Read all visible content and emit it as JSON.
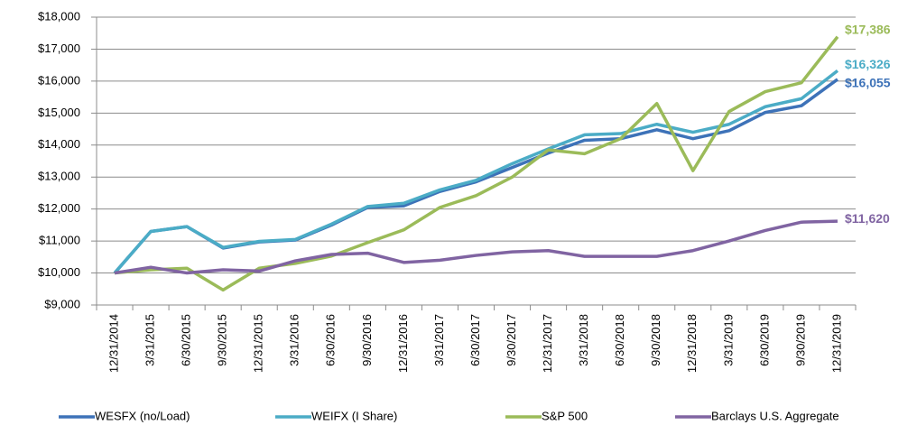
{
  "chart_data": {
    "type": "line",
    "categories": [
      "12/31/2014",
      "3/31/2015",
      "6/30/2015",
      "9/30/2015",
      "12/31/2015",
      "3/31/2016",
      "6/30/2016",
      "9/30/2016",
      "12/31/2016",
      "3/31/2017",
      "6/30/2017",
      "9/30/2017",
      "12/31/2017",
      "3/31/2018",
      "6/30/2018",
      "9/30/2018",
      "12/31/2018",
      "3/31/2019",
      "6/30/2019",
      "9/30/2019",
      "12/31/2019"
    ],
    "series": [
      {
        "name": "WESFX (no/Load)",
        "color": "#3d72b8",
        "values": [
          10000,
          11300,
          11450,
          10780,
          10970,
          11030,
          11500,
          12050,
          12100,
          12550,
          12850,
          13300,
          13750,
          14150,
          14200,
          14480,
          14200,
          14450,
          15020,
          15230,
          16055
        ],
        "value_labels": [
          null,
          null,
          null,
          null,
          null,
          null,
          null,
          null,
          null,
          null,
          null,
          null,
          null,
          null,
          null,
          null,
          null,
          null,
          null,
          null,
          "$16,055"
        ]
      },
      {
        "name": "WEIFX (I Share)",
        "color": "#4bacc6",
        "values": [
          10000,
          11300,
          11450,
          10800,
          10990,
          11050,
          11530,
          12080,
          12180,
          12600,
          12900,
          13420,
          13880,
          14320,
          14360,
          14650,
          14400,
          14650,
          15200,
          15450,
          16326
        ],
        "value_labels": [
          null,
          null,
          null,
          null,
          null,
          null,
          null,
          null,
          null,
          null,
          null,
          null,
          null,
          null,
          null,
          null,
          null,
          null,
          null,
          null,
          "$16,326"
        ]
      },
      {
        "name": "S&P 500",
        "color": "#9bbb59",
        "values": [
          10000,
          10100,
          10150,
          9470,
          10150,
          10300,
          10530,
          10950,
          11350,
          12050,
          12420,
          13000,
          13850,
          13730,
          14200,
          15300,
          13200,
          15050,
          15670,
          15950,
          17386
        ],
        "value_labels": [
          null,
          null,
          null,
          null,
          null,
          null,
          null,
          null,
          null,
          null,
          null,
          null,
          null,
          null,
          null,
          null,
          null,
          null,
          null,
          null,
          "$17,386"
        ]
      },
      {
        "name": "Barclays U.S. Aggregate",
        "color": "#8064a2",
        "values": [
          10000,
          10180,
          10000,
          10100,
          10060,
          10380,
          10580,
          10620,
          10330,
          10400,
          10550,
          10660,
          10700,
          10520,
          10520,
          10520,
          10700,
          11000,
          11330,
          11590,
          11620
        ],
        "value_labels": [
          null,
          null,
          null,
          null,
          null,
          null,
          null,
          null,
          null,
          null,
          null,
          null,
          null,
          null,
          null,
          null,
          null,
          null,
          null,
          null,
          "$11,620"
        ]
      }
    ],
    "ylim": [
      9000,
      18000
    ],
    "yticks": [
      {
        "value": 9000,
        "label": "$9,000"
      },
      {
        "value": 10000,
        "label": "$10,000"
      },
      {
        "value": 11000,
        "label": "$11,000"
      },
      {
        "value": 12000,
        "label": "$12,000"
      },
      {
        "value": 13000,
        "label": "$13,000"
      },
      {
        "value": 14000,
        "label": "$14,000"
      },
      {
        "value": 15000,
        "label": "$15,000"
      },
      {
        "value": 16000,
        "label": "$16,000"
      },
      {
        "value": 17000,
        "label": "$17,000"
      },
      {
        "value": 18000,
        "label": "$18,000"
      }
    ],
    "grid": true,
    "legend": "bottom"
  }
}
